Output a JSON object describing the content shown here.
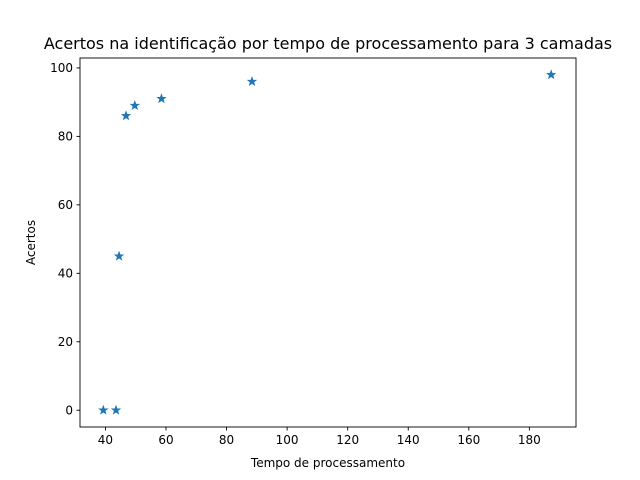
{
  "chart_data": {
    "type": "scatter",
    "title": "Acertos na identificação por tempo de processamento para 3 camadas",
    "xlabel": "Tempo de processamento",
    "ylabel": "Acertos",
    "xlim": [
      31.6,
      195.4
    ],
    "ylim": [
      -4.9,
      102.9
    ],
    "xticks": [
      40,
      60,
      80,
      100,
      120,
      140,
      160,
      180
    ],
    "yticks": [
      0,
      20,
      40,
      60,
      80,
      100
    ],
    "grid": false,
    "marker": "star",
    "color": "#1f77b4",
    "points": [
      {
        "x": 39.3,
        "y": 0
      },
      {
        "x": 43.5,
        "y": 0
      },
      {
        "x": 44.5,
        "y": 45
      },
      {
        "x": 46.8,
        "y": 86
      },
      {
        "x": 49.7,
        "y": 89
      },
      {
        "x": 58.5,
        "y": 91
      },
      {
        "x": 88.4,
        "y": 96
      },
      {
        "x": 187.2,
        "y": 98
      }
    ]
  }
}
